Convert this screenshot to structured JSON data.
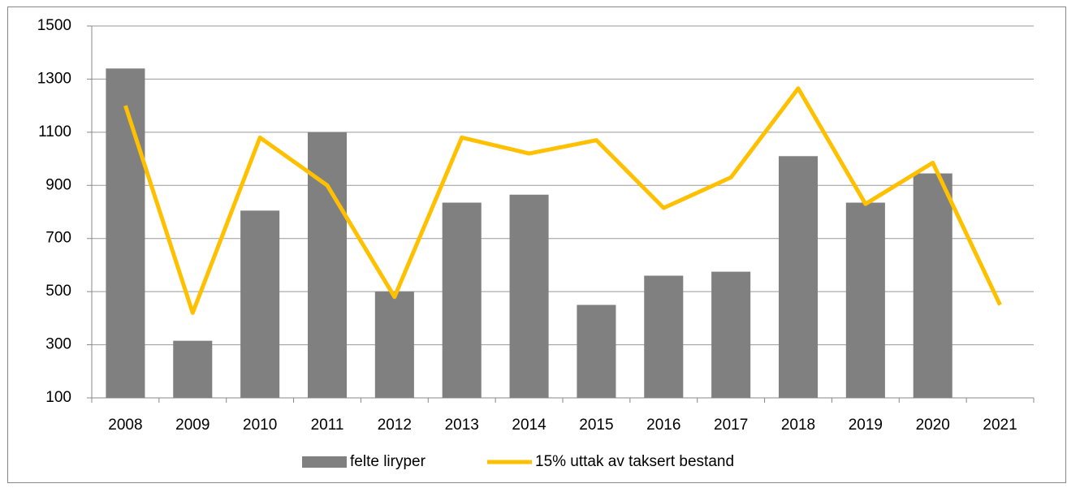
{
  "chart_data": {
    "type": "bar_line",
    "categories": [
      "2008",
      "2009",
      "2010",
      "2011",
      "2012",
      "2013",
      "2014",
      "2015",
      "2016",
      "2017",
      "2018",
      "2019",
      "2020",
      "2021"
    ],
    "series": [
      {
        "name": "felte liryper",
        "type": "bar",
        "color": "#808080",
        "values": [
          1340,
          315,
          805,
          1100,
          500,
          835,
          865,
          450,
          560,
          575,
          1010,
          835,
          945,
          null
        ]
      },
      {
        "name": "15% uttak av taksert bestand",
        "type": "line",
        "color": "#ffc000",
        "values": [
          1200,
          420,
          1080,
          900,
          480,
          1080,
          1020,
          1070,
          815,
          930,
          1265,
          830,
          985,
          450
        ]
      }
    ],
    "ylim": [
      100,
      1500
    ],
    "yticks": [
      100,
      300,
      500,
      700,
      900,
      1100,
      1300,
      1500
    ],
    "grid": true,
    "legend": "bottom"
  }
}
